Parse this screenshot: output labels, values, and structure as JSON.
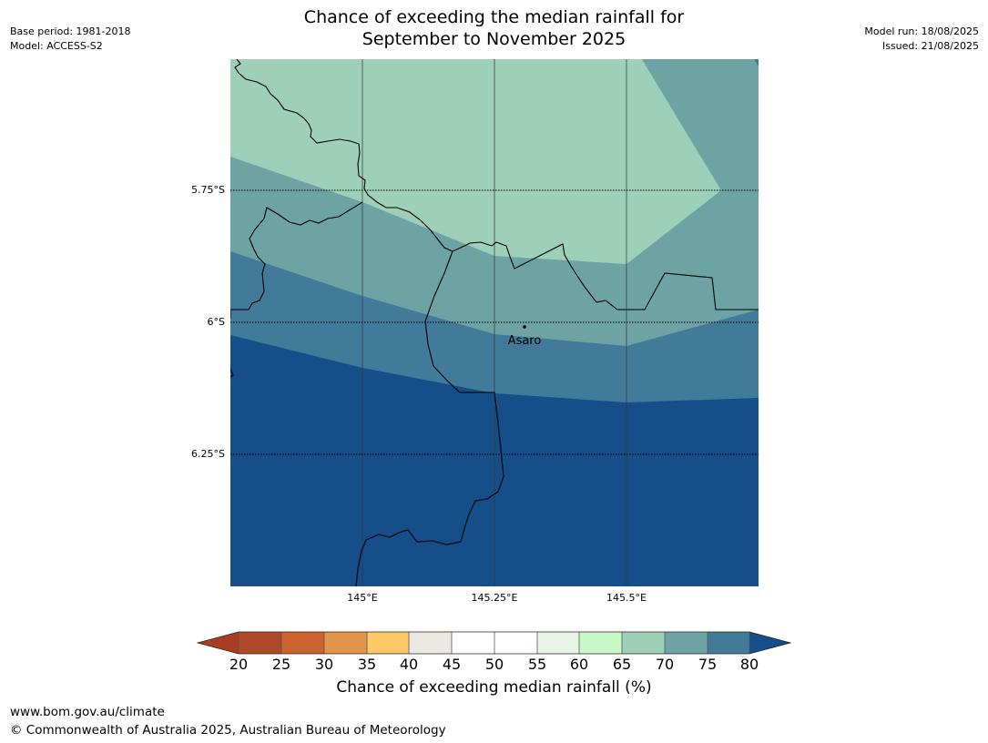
{
  "title_line1": "Chance of exceeding the median rainfall for",
  "title_line2": "September to November 2025",
  "base_period": "Base period: 1981-2018",
  "model": "Model: ACCESS-S2",
  "model_run": "Model run: 18/08/2025",
  "issued": "Issued: 21/08/2025",
  "lat_labels": [
    "5.75°S",
    "6°S",
    "6.25°S"
  ],
  "lon_labels": [
    "145°E",
    "145.25°E",
    "145.5°E"
  ],
  "place": "Asaro",
  "colorbar": {
    "ticks": [
      "20",
      "25",
      "30",
      "35",
      "40",
      "45",
      "50",
      "55",
      "60",
      "65",
      "70",
      "75",
      "80"
    ],
    "colors": [
      "#a83d22",
      "#b0482a",
      "#cc6230",
      "#e2954a",
      "#fdc966",
      "#ece8e3",
      "#ffffff",
      "#ffffff",
      "#e6f5e6",
      "#c8f8c8",
      "#9ecfb9",
      "#6ea3a6",
      "#427a9a",
      "#154e88"
    ],
    "label": "Chance of exceeding median rainfall (%)"
  },
  "legend_colors": {
    "band_65_70": "#9ecfb9",
    "band_70_75": "#6ea3a6",
    "band_75_80": "#427a9a",
    "band_80_plus": "#154e88"
  },
  "footer_url": "www.bom.gov.au/climate",
  "footer_copy": "© Commonwealth of Australia 2025, Australian Bureau of Meteorology"
}
